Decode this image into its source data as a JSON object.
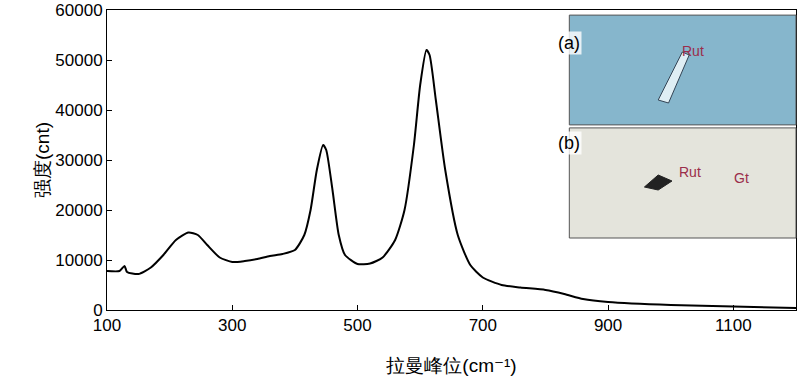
{
  "chart_data": {
    "type": "line",
    "x_label": "拉曼峰位(cm⁻¹)",
    "y_label": "强度(cnt)",
    "x": [
      100,
      120,
      128,
      132,
      150,
      170,
      190,
      210,
      230,
      245,
      260,
      280,
      300,
      320,
      340,
      360,
      380,
      400,
      415,
      425,
      435,
      445,
      450,
      460,
      470,
      480,
      500,
      520,
      540,
      560,
      575,
      590,
      600,
      610,
      615,
      625,
      640,
      660,
      680,
      700,
      730,
      760,
      800,
      830,
      860,
      900,
      1000,
      1100,
      1200
    ],
    "values": [
      7800,
      7800,
      8800,
      7600,
      7200,
      8500,
      11000,
      14000,
      15500,
      15000,
      13000,
      10500,
      9600,
      9800,
      10200,
      10800,
      11200,
      12000,
      15000,
      20000,
      28000,
      33000,
      32000,
      24000,
      15000,
      11000,
      9200,
      9300,
      10500,
      14000,
      20000,
      33000,
      45000,
      52000,
      51000,
      42000,
      28000,
      15000,
      9000,
      6500,
      5000,
      4500,
      4000,
      3200,
      2200,
      1600,
      1000,
      700,
      400
    ],
    "color": "#000000",
    "xlim": [
      100,
      1200
    ],
    "xticks": [
      100,
      300,
      500,
      700,
      900,
      1100
    ],
    "ylim": [
      0,
      60000
    ],
    "yticks": [
      0,
      10000,
      20000,
      30000,
      40000,
      50000,
      60000
    ],
    "grid": false,
    "annotations": [
      "(a)",
      "Rut",
      "(b)",
      "Rut",
      "Gt"
    ]
  }
}
